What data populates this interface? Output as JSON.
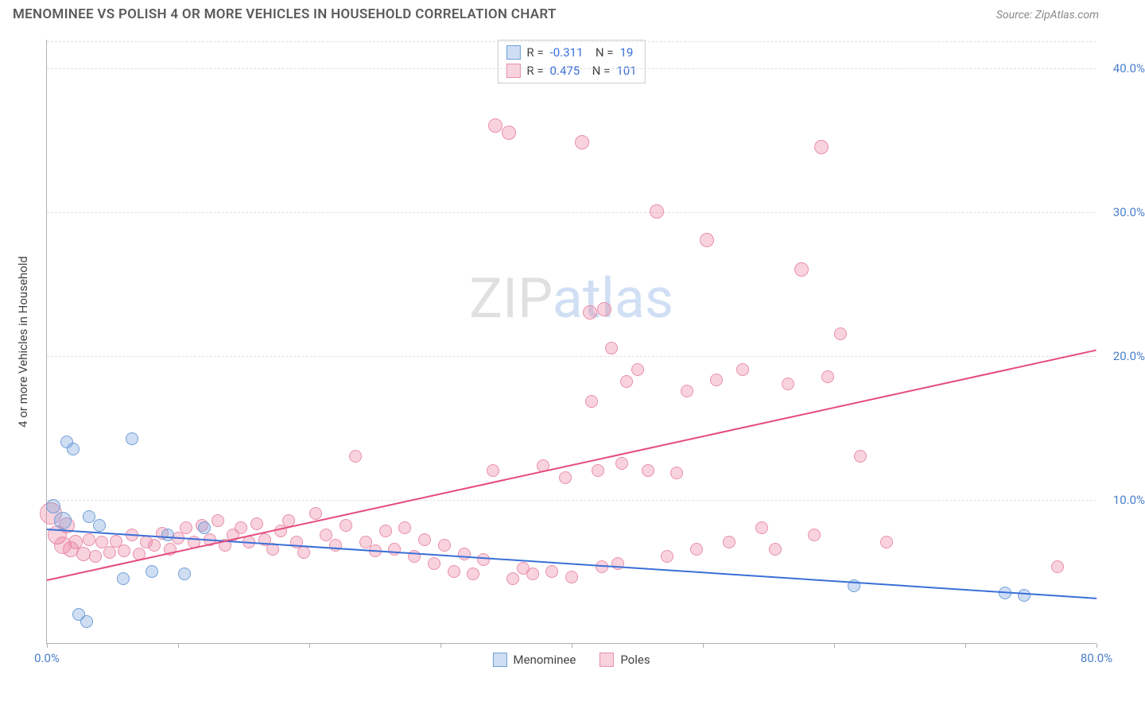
{
  "title": "MENOMINEE VS POLISH 4 OR MORE VEHICLES IN HOUSEHOLD CORRELATION CHART",
  "source": "Source: ZipAtlas.com",
  "ylabel": "4 or more Vehicles in Household",
  "watermark_part1": "ZIP",
  "watermark_part2": "atlas",
  "chart": {
    "type": "scatter-with-trendlines",
    "xlim": [
      0,
      80
    ],
    "ylim": [
      0,
      42
    ],
    "x_tick_positions": [
      0,
      10,
      20,
      30,
      40,
      50,
      60,
      70,
      80
    ],
    "x_tick_labels": {
      "0": "0.0%",
      "80": "80.0%"
    },
    "y_gridlines": [
      10,
      20,
      30,
      40
    ],
    "y_tick_labels": {
      "10": "10.0%",
      "20": "20.0%",
      "30": "30.0%",
      "40": "40.0%"
    },
    "background_color": "#ffffff",
    "grid_color": "#e0e0e0",
    "axis_color": "#b0b0b0"
  },
  "series": {
    "menominee": {
      "label": "Menominee",
      "fill": "rgba(120,160,220,0.35)",
      "stroke": "#6f9fd8",
      "line_color": "#3a6fd8",
      "marker_radius": 8,
      "R": "-0.311",
      "N": "19",
      "trend": {
        "x1": 0,
        "y1": 8.0,
        "x2": 80,
        "y2": 3.2
      },
      "points": [
        {
          "x": 0.5,
          "y": 9.5,
          "r": 9
        },
        {
          "x": 1.2,
          "y": 8.5,
          "r": 11
        },
        {
          "x": 1.5,
          "y": 14.0,
          "r": 8
        },
        {
          "x": 2.0,
          "y": 13.5,
          "r": 8
        },
        {
          "x": 2.4,
          "y": 2.0,
          "r": 8
        },
        {
          "x": 3.0,
          "y": 1.5,
          "r": 8
        },
        {
          "x": 3.2,
          "y": 8.8,
          "r": 8
        },
        {
          "x": 4.0,
          "y": 8.2,
          "r": 8
        },
        {
          "x": 5.8,
          "y": 4.5,
          "r": 8
        },
        {
          "x": 6.5,
          "y": 14.2,
          "r": 8
        },
        {
          "x": 8.0,
          "y": 5.0,
          "r": 8
        },
        {
          "x": 9.2,
          "y": 7.5,
          "r": 8
        },
        {
          "x": 10.5,
          "y": 4.8,
          "r": 8
        },
        {
          "x": 12.0,
          "y": 8.0,
          "r": 8
        },
        {
          "x": 61.5,
          "y": 4.0,
          "r": 8
        },
        {
          "x": 73.0,
          "y": 3.5,
          "r": 8
        },
        {
          "x": 74.5,
          "y": 3.3,
          "r": 8
        }
      ]
    },
    "poles": {
      "label": "Poles",
      "fill": "rgba(235,130,160,0.35)",
      "stroke": "#e98fab",
      "line_color": "#e64b7b",
      "marker_radius": 8,
      "R": "0.475",
      "N": "101",
      "trend": {
        "x1": 0,
        "y1": 4.5,
        "x2": 80,
        "y2": 20.5
      },
      "points": [
        {
          "x": 0.3,
          "y": 9.0,
          "r": 14
        },
        {
          "x": 0.8,
          "y": 7.5,
          "r": 12
        },
        {
          "x": 1.2,
          "y": 6.8,
          "r": 11
        },
        {
          "x": 1.5,
          "y": 8.2,
          "r": 10
        },
        {
          "x": 1.8,
          "y": 6.5,
          "r": 10
        },
        {
          "x": 2.2,
          "y": 7.0,
          "r": 9
        },
        {
          "x": 2.8,
          "y": 6.2,
          "r": 9
        },
        {
          "x": 3.2,
          "y": 7.2,
          "r": 8
        },
        {
          "x": 3.7,
          "y": 6.0,
          "r": 8
        },
        {
          "x": 4.2,
          "y": 7.0,
          "r": 8
        },
        {
          "x": 4.8,
          "y": 6.3,
          "r": 8
        },
        {
          "x": 5.3,
          "y": 7.1,
          "r": 8
        },
        {
          "x": 5.9,
          "y": 6.4,
          "r": 8
        },
        {
          "x": 6.5,
          "y": 7.5,
          "r": 8
        },
        {
          "x": 7.0,
          "y": 6.2,
          "r": 8
        },
        {
          "x": 7.6,
          "y": 7.0,
          "r": 8
        },
        {
          "x": 8.2,
          "y": 6.8,
          "r": 8
        },
        {
          "x": 8.8,
          "y": 7.6,
          "r": 8
        },
        {
          "x": 9.4,
          "y": 6.5,
          "r": 8
        },
        {
          "x": 10.0,
          "y": 7.3,
          "r": 8
        },
        {
          "x": 10.6,
          "y": 8.0,
          "r": 8
        },
        {
          "x": 11.2,
          "y": 7.0,
          "r": 8
        },
        {
          "x": 11.8,
          "y": 8.2,
          "r": 8
        },
        {
          "x": 12.4,
          "y": 7.2,
          "r": 8
        },
        {
          "x": 13.0,
          "y": 8.5,
          "r": 8
        },
        {
          "x": 13.6,
          "y": 6.8,
          "r": 8
        },
        {
          "x": 14.2,
          "y": 7.5,
          "r": 8
        },
        {
          "x": 14.8,
          "y": 8.0,
          "r": 8
        },
        {
          "x": 15.4,
          "y": 7.0,
          "r": 8
        },
        {
          "x": 16.0,
          "y": 8.3,
          "r": 8
        },
        {
          "x": 16.6,
          "y": 7.2,
          "r": 8
        },
        {
          "x": 17.2,
          "y": 6.5,
          "r": 8
        },
        {
          "x": 17.8,
          "y": 7.8,
          "r": 8
        },
        {
          "x": 18.4,
          "y": 8.5,
          "r": 8
        },
        {
          "x": 19.0,
          "y": 7.0,
          "r": 8
        },
        {
          "x": 19.6,
          "y": 6.3,
          "r": 8
        },
        {
          "x": 20.5,
          "y": 9.0,
          "r": 8
        },
        {
          "x": 21.3,
          "y": 7.5,
          "r": 8
        },
        {
          "x": 22.0,
          "y": 6.8,
          "r": 8
        },
        {
          "x": 22.8,
          "y": 8.2,
          "r": 8
        },
        {
          "x": 23.5,
          "y": 13.0,
          "r": 8
        },
        {
          "x": 24.3,
          "y": 7.0,
          "r": 8
        },
        {
          "x": 25.0,
          "y": 6.4,
          "r": 8
        },
        {
          "x": 25.8,
          "y": 7.8,
          "r": 8
        },
        {
          "x": 26.5,
          "y": 6.5,
          "r": 8
        },
        {
          "x": 27.3,
          "y": 8.0,
          "r": 8
        },
        {
          "x": 28.0,
          "y": 6.0,
          "r": 8
        },
        {
          "x": 28.8,
          "y": 7.2,
          "r": 8
        },
        {
          "x": 29.5,
          "y": 5.5,
          "r": 8
        },
        {
          "x": 30.3,
          "y": 6.8,
          "r": 8
        },
        {
          "x": 31.0,
          "y": 5.0,
          "r": 8
        },
        {
          "x": 31.8,
          "y": 6.2,
          "r": 8
        },
        {
          "x": 32.5,
          "y": 4.8,
          "r": 8
        },
        {
          "x": 33.3,
          "y": 5.8,
          "r": 8
        },
        {
          "x": 34.0,
          "y": 12.0,
          "r": 8
        },
        {
          "x": 34.2,
          "y": 36.0,
          "r": 9
        },
        {
          "x": 35.2,
          "y": 35.5,
          "r": 9
        },
        {
          "x": 35.5,
          "y": 4.5,
          "r": 8
        },
        {
          "x": 36.3,
          "y": 5.2,
          "r": 8
        },
        {
          "x": 37.0,
          "y": 4.8,
          "r": 8
        },
        {
          "x": 37.8,
          "y": 12.3,
          "r": 8
        },
        {
          "x": 38.5,
          "y": 5.0,
          "r": 8
        },
        {
          "x": 39.5,
          "y": 11.5,
          "r": 8
        },
        {
          "x": 40.0,
          "y": 4.6,
          "r": 8
        },
        {
          "x": 40.8,
          "y": 34.8,
          "r": 9
        },
        {
          "x": 41.4,
          "y": 23.0,
          "r": 9
        },
        {
          "x": 41.5,
          "y": 16.8,
          "r": 8
        },
        {
          "x": 42.0,
          "y": 12.0,
          "r": 8
        },
        {
          "x": 42.3,
          "y": 5.3,
          "r": 8
        },
        {
          "x": 42.5,
          "y": 23.2,
          "r": 9
        },
        {
          "x": 43.0,
          "y": 20.5,
          "r": 8
        },
        {
          "x": 43.5,
          "y": 5.5,
          "r": 8
        },
        {
          "x": 43.8,
          "y": 12.5,
          "r": 8
        },
        {
          "x": 44.2,
          "y": 18.2,
          "r": 8
        },
        {
          "x": 45.0,
          "y": 19.0,
          "r": 8
        },
        {
          "x": 45.8,
          "y": 12.0,
          "r": 8
        },
        {
          "x": 46.5,
          "y": 30.0,
          "r": 9
        },
        {
          "x": 47.3,
          "y": 6.0,
          "r": 8
        },
        {
          "x": 48.0,
          "y": 11.8,
          "r": 8
        },
        {
          "x": 48.8,
          "y": 17.5,
          "r": 8
        },
        {
          "x": 49.5,
          "y": 6.5,
          "r": 8
        },
        {
          "x": 50.3,
          "y": 28.0,
          "r": 9
        },
        {
          "x": 51.0,
          "y": 18.3,
          "r": 8
        },
        {
          "x": 52.0,
          "y": 7.0,
          "r": 8
        },
        {
          "x": 53.0,
          "y": 19.0,
          "r": 8
        },
        {
          "x": 54.5,
          "y": 8.0,
          "r": 8
        },
        {
          "x": 55.5,
          "y": 6.5,
          "r": 8
        },
        {
          "x": 56.5,
          "y": 18.0,
          "r": 8
        },
        {
          "x": 57.5,
          "y": 26.0,
          "r": 9
        },
        {
          "x": 58.5,
          "y": 7.5,
          "r": 8
        },
        {
          "x": 59.0,
          "y": 34.5,
          "r": 9
        },
        {
          "x": 59.5,
          "y": 18.5,
          "r": 8
        },
        {
          "x": 60.5,
          "y": 21.5,
          "r": 8
        },
        {
          "x": 62.0,
          "y": 13.0,
          "r": 8
        },
        {
          "x": 64.0,
          "y": 7.0,
          "r": 8
        },
        {
          "x": 77.0,
          "y": 5.3,
          "r": 8
        }
      ]
    }
  },
  "legend_bottom": [
    {
      "key": "menominee"
    },
    {
      "key": "poles"
    }
  ]
}
